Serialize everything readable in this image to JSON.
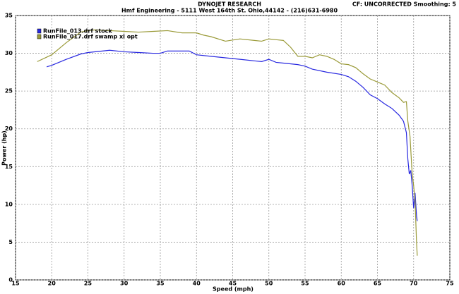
{
  "chart_data": {
    "type": "line",
    "title": "DYNOJET RESEARCH",
    "subtitle": "Hmf Engineering - 5111 West 164th St. Ohio,44142 - (216)631-6980",
    "annotation": "CF: UNCORRECTED  Smoothing: 5",
    "x_label": "Speed (mph)",
    "y_label": "Power (hp)",
    "xlim": [
      15,
      75
    ],
    "xticks": [
      15,
      20,
      25,
      30,
      35,
      40,
      45,
      50,
      55,
      60,
      65,
      70,
      75
    ],
    "ylim": [
      0,
      35
    ],
    "yticks": [
      0,
      5,
      10,
      15,
      20,
      25,
      30,
      35
    ],
    "grid": true,
    "legend": "top-left",
    "series": [
      {
        "name": "RunFile_013.drf stock",
        "color": "#2828e0",
        "x": [
          19.3,
          20,
          22,
          24,
          25,
          27,
          28,
          30,
          32,
          34,
          35,
          36,
          38,
          39,
          40,
          42,
          44,
          46,
          48,
          49,
          50,
          51,
          52,
          54,
          55,
          56,
          58,
          60,
          61,
          62,
          63,
          64,
          65,
          66,
          67,
          68,
          68.6,
          69,
          69.2,
          69.4,
          69.6,
          69.8,
          70,
          70.2,
          70.4,
          70.5
        ],
        "values": [
          28.2,
          28.4,
          29.2,
          29.9,
          30.1,
          30.3,
          30.4,
          30.2,
          30.1,
          30.0,
          30.0,
          30.3,
          30.3,
          30.3,
          29.8,
          29.6,
          29.4,
          29.2,
          29.0,
          28.9,
          29.2,
          28.8,
          28.7,
          28.5,
          28.3,
          27.9,
          27.5,
          27.2,
          26.9,
          26.3,
          25.5,
          24.5,
          24.0,
          23.3,
          22.7,
          21.8,
          21.0,
          19.5,
          16,
          14,
          14.5,
          12.5,
          9.5,
          11.5,
          8.5,
          7.8
        ]
      },
      {
        "name": "RunFile_017.drf swamp xl opt",
        "color": "#9a9a38",
        "x": [
          18,
          20,
          22,
          24,
          25,
          26,
          28,
          30,
          32,
          34,
          36,
          38,
          40,
          41,
          42,
          44,
          46,
          48,
          49,
          50,
          51,
          52,
          53,
          54,
          55,
          56,
          57,
          58,
          59,
          60,
          61,
          62,
          63,
          64,
          65,
          66,
          67,
          68,
          68.6,
          69,
          69.2,
          69.5,
          69.8,
          70,
          70.2,
          70.4,
          70.5
        ],
        "values": [
          28.9,
          29.8,
          31.4,
          32.8,
          33.0,
          33.1,
          33.0,
          32.9,
          32.8,
          32.9,
          33.0,
          32.7,
          32.7,
          32.4,
          32.2,
          31.6,
          31.9,
          31.7,
          31.6,
          31.9,
          31.8,
          31.7,
          30.8,
          29.6,
          29.6,
          29.4,
          29.8,
          29.6,
          29.2,
          28.6,
          28.5,
          28.1,
          27.3,
          26.6,
          26.2,
          25.8,
          24.8,
          24.1,
          23.5,
          23.6,
          21,
          19,
          14,
          12.5,
          10.5,
          5,
          3.2
        ]
      }
    ]
  }
}
